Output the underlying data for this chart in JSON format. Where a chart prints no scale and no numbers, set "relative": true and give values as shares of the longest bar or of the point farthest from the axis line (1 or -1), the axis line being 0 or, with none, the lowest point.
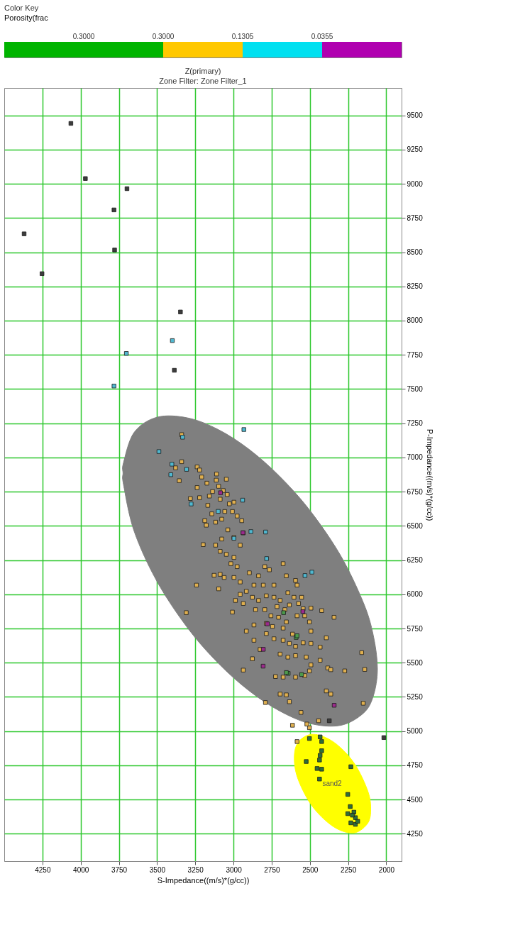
{
  "chart_data": [
    {
      "type": "bar",
      "orientation": "horizontal",
      "stacked": true,
      "relative": true,
      "title": "Color Key",
      "subtitle": "Porosity(frac",
      "categories": [
        null
      ],
      "annotations": [
        "0.3000",
        "0.3000",
        "0.1305",
        "0.0355"
      ],
      "series": [
        {
          "color": "#00b400",
          "values": [
            0.4
          ]
        },
        {
          "color": "#ffc800",
          "values": [
            0.2
          ]
        },
        {
          "color": "#00e0f0",
          "values": [
            0.2
          ]
        },
        {
          "color": "#b000b0",
          "values": [
            0.2
          ]
        }
      ]
    },
    {
      "type": "scatter",
      "title": "Z(primary)",
      "subtitle": "Zone Filter: Zone Filter_1",
      "xlabel": "S-Impedance((m/s)*(g/cc))",
      "ylabel": "P-Impedance((m/s)*(g/cc))",
      "xlim": [
        4500,
        1900
      ],
      "xticks": [
        4250,
        4000,
        3750,
        3500,
        3250,
        3000,
        2750,
        2500,
        2250,
        2000
      ],
      "ylim": [
        4050,
        9700
      ],
      "yticks": [
        4250,
        4500,
        4750,
        5000,
        5250,
        5500,
        5750,
        6000,
        6250,
        6500,
        6750,
        7000,
        7250,
        7500,
        7750,
        8000,
        8250,
        8500,
        8750,
        9000,
        9250,
        9500
      ],
      "grid": true,
      "marker": "square",
      "annotations": [
        "sand2"
      ],
      "series": [
        {
          "type": "area",
          "marker": "none",
          "color": "#7f7f7f",
          "x": [
            3723,
            3720,
            3650,
            3500,
            3300,
            3100,
            2900,
            2700,
            2500,
            2300,
            2150,
            2085,
            2058,
            2085,
            2150,
            2300,
            2500,
            2700,
            2900,
            3100,
            3300,
            3500,
            3650,
            3720
          ],
          "values": [
            6885,
            6960,
            7183,
            7294,
            7289,
            7204,
            7061,
            6864,
            6613,
            6285,
            5939,
            5700,
            5455,
            5257,
            5131,
            5042,
            5056,
            5149,
            5297,
            5497,
            5754,
            6093,
            6461,
            6804
          ]
        },
        {
          "type": "area",
          "marker": "none",
          "color": "#ffff00",
          "x": [
            2602,
            2580,
            2500,
            2400,
            2300,
            2200,
            2120,
            2102,
            2120,
            2200,
            2300,
            2400,
            2500,
            2580
          ],
          "values": [
            4801,
            4913,
            4975,
            4955,
            4880,
            4749,
            4559,
            4431,
            4330,
            4259,
            4275,
            4349,
            4476,
            4657
          ]
        },
        {
          "color": "#e0b050",
          "x": [
            3339,
            3379,
            3355,
            3238,
            3222,
            3208,
            3174,
            3111,
            3113,
            3047,
            3097,
            3067,
            3238,
            3282,
            3222,
            3137,
            3158,
            3168,
            3142,
            3087,
            3041,
            3027,
            2997,
            3188,
            3178,
            3117,
            3077,
            3057,
            3007,
            2976,
            2946,
            2936,
            3037,
            2997,
            2956,
            3077,
            3117,
            3087,
            3047,
            2997,
            3017,
            2976,
            3198,
            3127,
            3087,
            3061,
            3097,
            3242,
            2997,
            2956,
            2896,
            2866,
            2836,
            2795,
            2765,
            2675,
            2805,
            2735,
            2654,
            2594,
            2584,
            2956,
            2916,
            2876,
            2836,
            2785,
            2735,
            2695,
            2644,
            2604,
            2554,
            2987,
            2936,
            2856,
            2795,
            2715,
            2664,
            2634,
            2574,
            2544,
            2493,
            2423,
            2342,
            3309,
            3007,
            2755,
            2705,
            2654,
            2584,
            2534,
            2503,
            2785,
            2745,
            2675,
            2614,
            2493,
            2866,
            2916,
            2785,
            2735,
            2675,
            2634,
            2594,
            2544,
            2493,
            2433,
            2393,
            2866,
            2826,
            2876,
            2695,
            2644,
            2594,
            2524,
            2493,
            2433,
            2383,
            2363,
            2503,
            2534,
            2594,
            2675,
            2725,
            2936,
            2272,
            2161,
            2141,
            2695,
            2654,
            2634,
            2791,
            2558,
            2503,
            2520,
            2614,
            2584,
            2393,
            2151,
            2443,
            2363,
            3339
          ],
          "values": [
            6969,
            6924,
            6830,
            6931,
            6908,
            6857,
            6812,
            6879,
            6834,
            6841,
            6789,
            6758,
            6780,
            6700,
            6706,
            6751,
            6718,
            6650,
            6588,
            6695,
            6729,
            6661,
            6673,
            6538,
            6505,
            6527,
            6549,
            6605,
            6605,
            6572,
            6538,
            6449,
            6471,
            6415,
            6359,
            6404,
            6359,
            6314,
            6292,
            6269,
            6224,
            6202,
            6363,
            6139,
            6146,
            6123,
            6040,
            6067,
            6123,
            6090,
            6157,
            6067,
            6135,
            6202,
            6179,
            6224,
            6067,
            6067,
            6135,
            6101,
            6067,
            6000,
            6022,
            5978,
            5955,
            5989,
            5978,
            5955,
            6011,
            5978,
            5978,
            5955,
            5933,
            5888,
            5888,
            5910,
            5888,
            5922,
            5933,
            5895,
            5899,
            5881,
            5832,
            5866,
            5870,
            5843,
            5832,
            5798,
            5843,
            5843,
            5798,
            5787,
            5765,
            5753,
            5709,
            5731,
            5776,
            5731,
            5713,
            5675,
            5664,
            5641,
            5619,
            5646,
            5641,
            5614,
            5682,
            5664,
            5597,
            5529,
            5563,
            5541,
            5552,
            5541,
            5484,
            5518,
            5462,
            5449,
            5440,
            5406,
            5395,
            5395,
            5399,
            5446,
            5440,
            5574,
            5451,
            5271,
            5265,
            5215,
            5209,
            5137,
            5025,
            5052,
            5043,
            4924,
            5294,
            5204,
            5076,
            5271,
            7167
          ]
        },
        {
          "color": "#50b8d0",
          "x": [
            3488,
            3333,
            3403,
            3410,
            3307,
            3277,
            2940,
            2886,
            2790,
            2783,
            2487,
            2532,
            3100,
            2997,
            3400,
            3701,
            3782,
            2932
          ],
          "values": [
            7043,
            7148,
            6951,
            6874,
            6913,
            6660,
            6688,
            6458,
            6455,
            6261,
            6162,
            6137,
            6606,
            6409,
            7854,
            7760,
            7522,
            7204
          ]
        },
        {
          "color": "#9b2a8c",
          "x": [
            3085,
            2938,
            2546,
            2805,
            2778,
            2341,
            2806
          ],
          "values": [
            6742,
            6450,
            5874,
            5598,
            5784,
            5189,
            5475
          ]
        },
        {
          "color": "#4c9a4c",
          "x": [
            2672,
            2590,
            2642,
            2554,
            2584,
            2654
          ],
          "values": [
            5866,
            5685,
            5422,
            5414,
            5697,
            5428
          ]
        },
        {
          "color": "#2d6e3a",
          "x": [
            2433,
            2423,
            2503,
            2423,
            2433,
            2437,
            2524,
            2453,
            2423,
            2437,
            2232,
            2252,
            2236,
            2252,
            2212,
            2202,
            2232,
            2202,
            2187,
            2222
          ],
          "values": [
            4958,
            4924,
            4946,
            4857,
            4823,
            4789,
            4778,
            4727,
            4722,
            4650,
            4740,
            4538,
            4449,
            4397,
            4408,
            4368,
            4330,
            4319,
            4341,
            4386
          ]
        },
        {
          "color": "#3c3c3c",
          "x": [
            4064,
            3969,
            3697,
            3782,
            4370,
            3778,
            4253,
            3347,
            3387,
            2016,
            2373
          ],
          "values": [
            9441,
            9038,
            8964,
            8809,
            8634,
            8516,
            8343,
            8063,
            7637,
            4953,
            5076
          ]
        }
      ]
    }
  ]
}
